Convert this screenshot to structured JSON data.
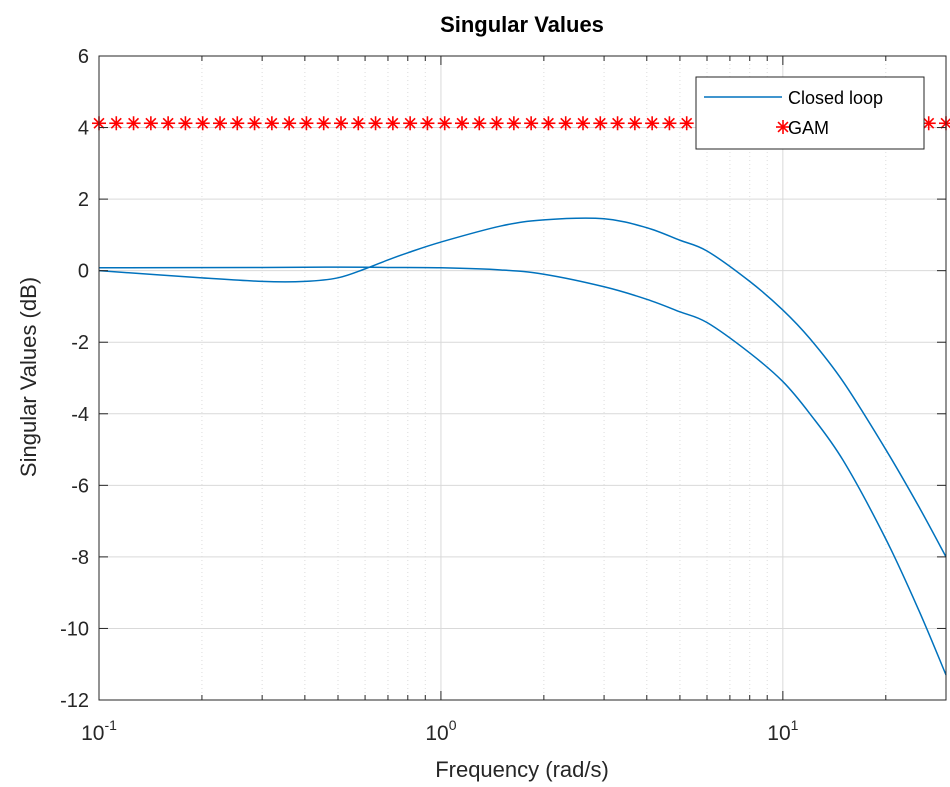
{
  "chart_data": {
    "type": "line",
    "title": "Singular Values",
    "xlabel": "Frequency (rad/s)",
    "ylabel": "Singular Values (dB)",
    "x_scale": "log",
    "xlim": [
      0.1,
      30
    ],
    "ylim": [
      -12,
      6
    ],
    "y_ticks": [
      6,
      4,
      2,
      0,
      -2,
      -4,
      -6,
      -8,
      -10,
      -12
    ],
    "y_tick_labels": [
      "6",
      "4",
      "2",
      "0",
      "-2",
      "-4",
      "-6",
      "-8",
      "-10",
      "-12"
    ],
    "x_ticks": [
      {
        "value": 0.1,
        "base": "10",
        "exp": "-1"
      },
      {
        "value": 1,
        "base": "10",
        "exp": "0"
      },
      {
        "value": 10,
        "base": "10",
        "exp": "1"
      }
    ],
    "grid": true,
    "legend_position": "top-right",
    "series": [
      {
        "name": "Closed loop",
        "style": "line",
        "color": "#0072BD",
        "curves": [
          {
            "x": [
              0.1,
              0.2,
              0.3,
              0.4,
              0.5,
              0.6,
              0.7,
              0.8,
              1,
              1.5,
              2,
              3,
              4,
              5,
              6,
              8,
              10,
              12,
              15,
              20,
              25,
              30
            ],
            "y": [
              0.0,
              -0.2,
              -0.3,
              -0.3,
              -0.2,
              0.05,
              0.3,
              0.5,
              0.8,
              1.25,
              1.42,
              1.45,
              1.2,
              0.85,
              0.55,
              -0.3,
              -1.1,
              -1.9,
              -3.1,
              -5.0,
              -6.6,
              -8.0
            ]
          },
          {
            "x": [
              0.1,
              0.3,
              0.5,
              0.7,
              1,
              1.5,
              2,
              3,
              4,
              5,
              6,
              8,
              10,
              12,
              15,
              20,
              25,
              30
            ],
            "y": [
              0.08,
              0.09,
              0.1,
              0.09,
              0.08,
              0.02,
              -0.1,
              -0.45,
              -0.8,
              -1.15,
              -1.45,
              -2.3,
              -3.1,
              -4.0,
              -5.3,
              -7.5,
              -9.5,
              -11.3
            ]
          }
        ]
      },
      {
        "name": "GAM",
        "style": "marker",
        "marker": "*",
        "color": "#FF0000",
        "value": 4.12
      }
    ]
  }
}
